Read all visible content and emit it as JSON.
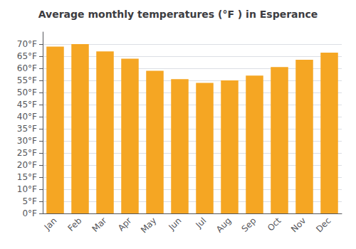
{
  "chart_data": {
    "type": "bar",
    "title": "Average monthly temperatures (°F ) in Esperance",
    "categories": [
      "Jan",
      "Feb",
      "Mar",
      "Apr",
      "May",
      "Jun",
      "Jul",
      "Aug",
      "Sep",
      "Oct",
      "Nov",
      "Dec"
    ],
    "values": [
      69,
      70,
      67,
      64,
      59,
      55.5,
      54,
      55,
      57,
      60.5,
      63.5,
      66.5
    ],
    "color": "#F5A623",
    "ylim": [
      0,
      75
    ],
    "yticks": [
      {
        "value": 0,
        "label": "0°F"
      },
      {
        "value": 5,
        "label": "5°F"
      },
      {
        "value": 10,
        "label": "10°F"
      },
      {
        "value": 15,
        "label": "15°F"
      },
      {
        "value": 20,
        "label": "20°F"
      },
      {
        "value": 25,
        "label": "25°F"
      },
      {
        "value": 30,
        "label": "30°F"
      },
      {
        "value": 35,
        "label": "35°F"
      },
      {
        "value": 40,
        "label": "40°F"
      },
      {
        "value": 45,
        "label": "45°F"
      },
      {
        "value": 50,
        "label": "50°F"
      },
      {
        "value": 55,
        "label": "55°F"
      },
      {
        "value": 60,
        "label": "60°F"
      },
      {
        "value": 65,
        "label": "65°F"
      },
      {
        "value": 70,
        "label": "70°F"
      }
    ],
    "grid": true
  }
}
